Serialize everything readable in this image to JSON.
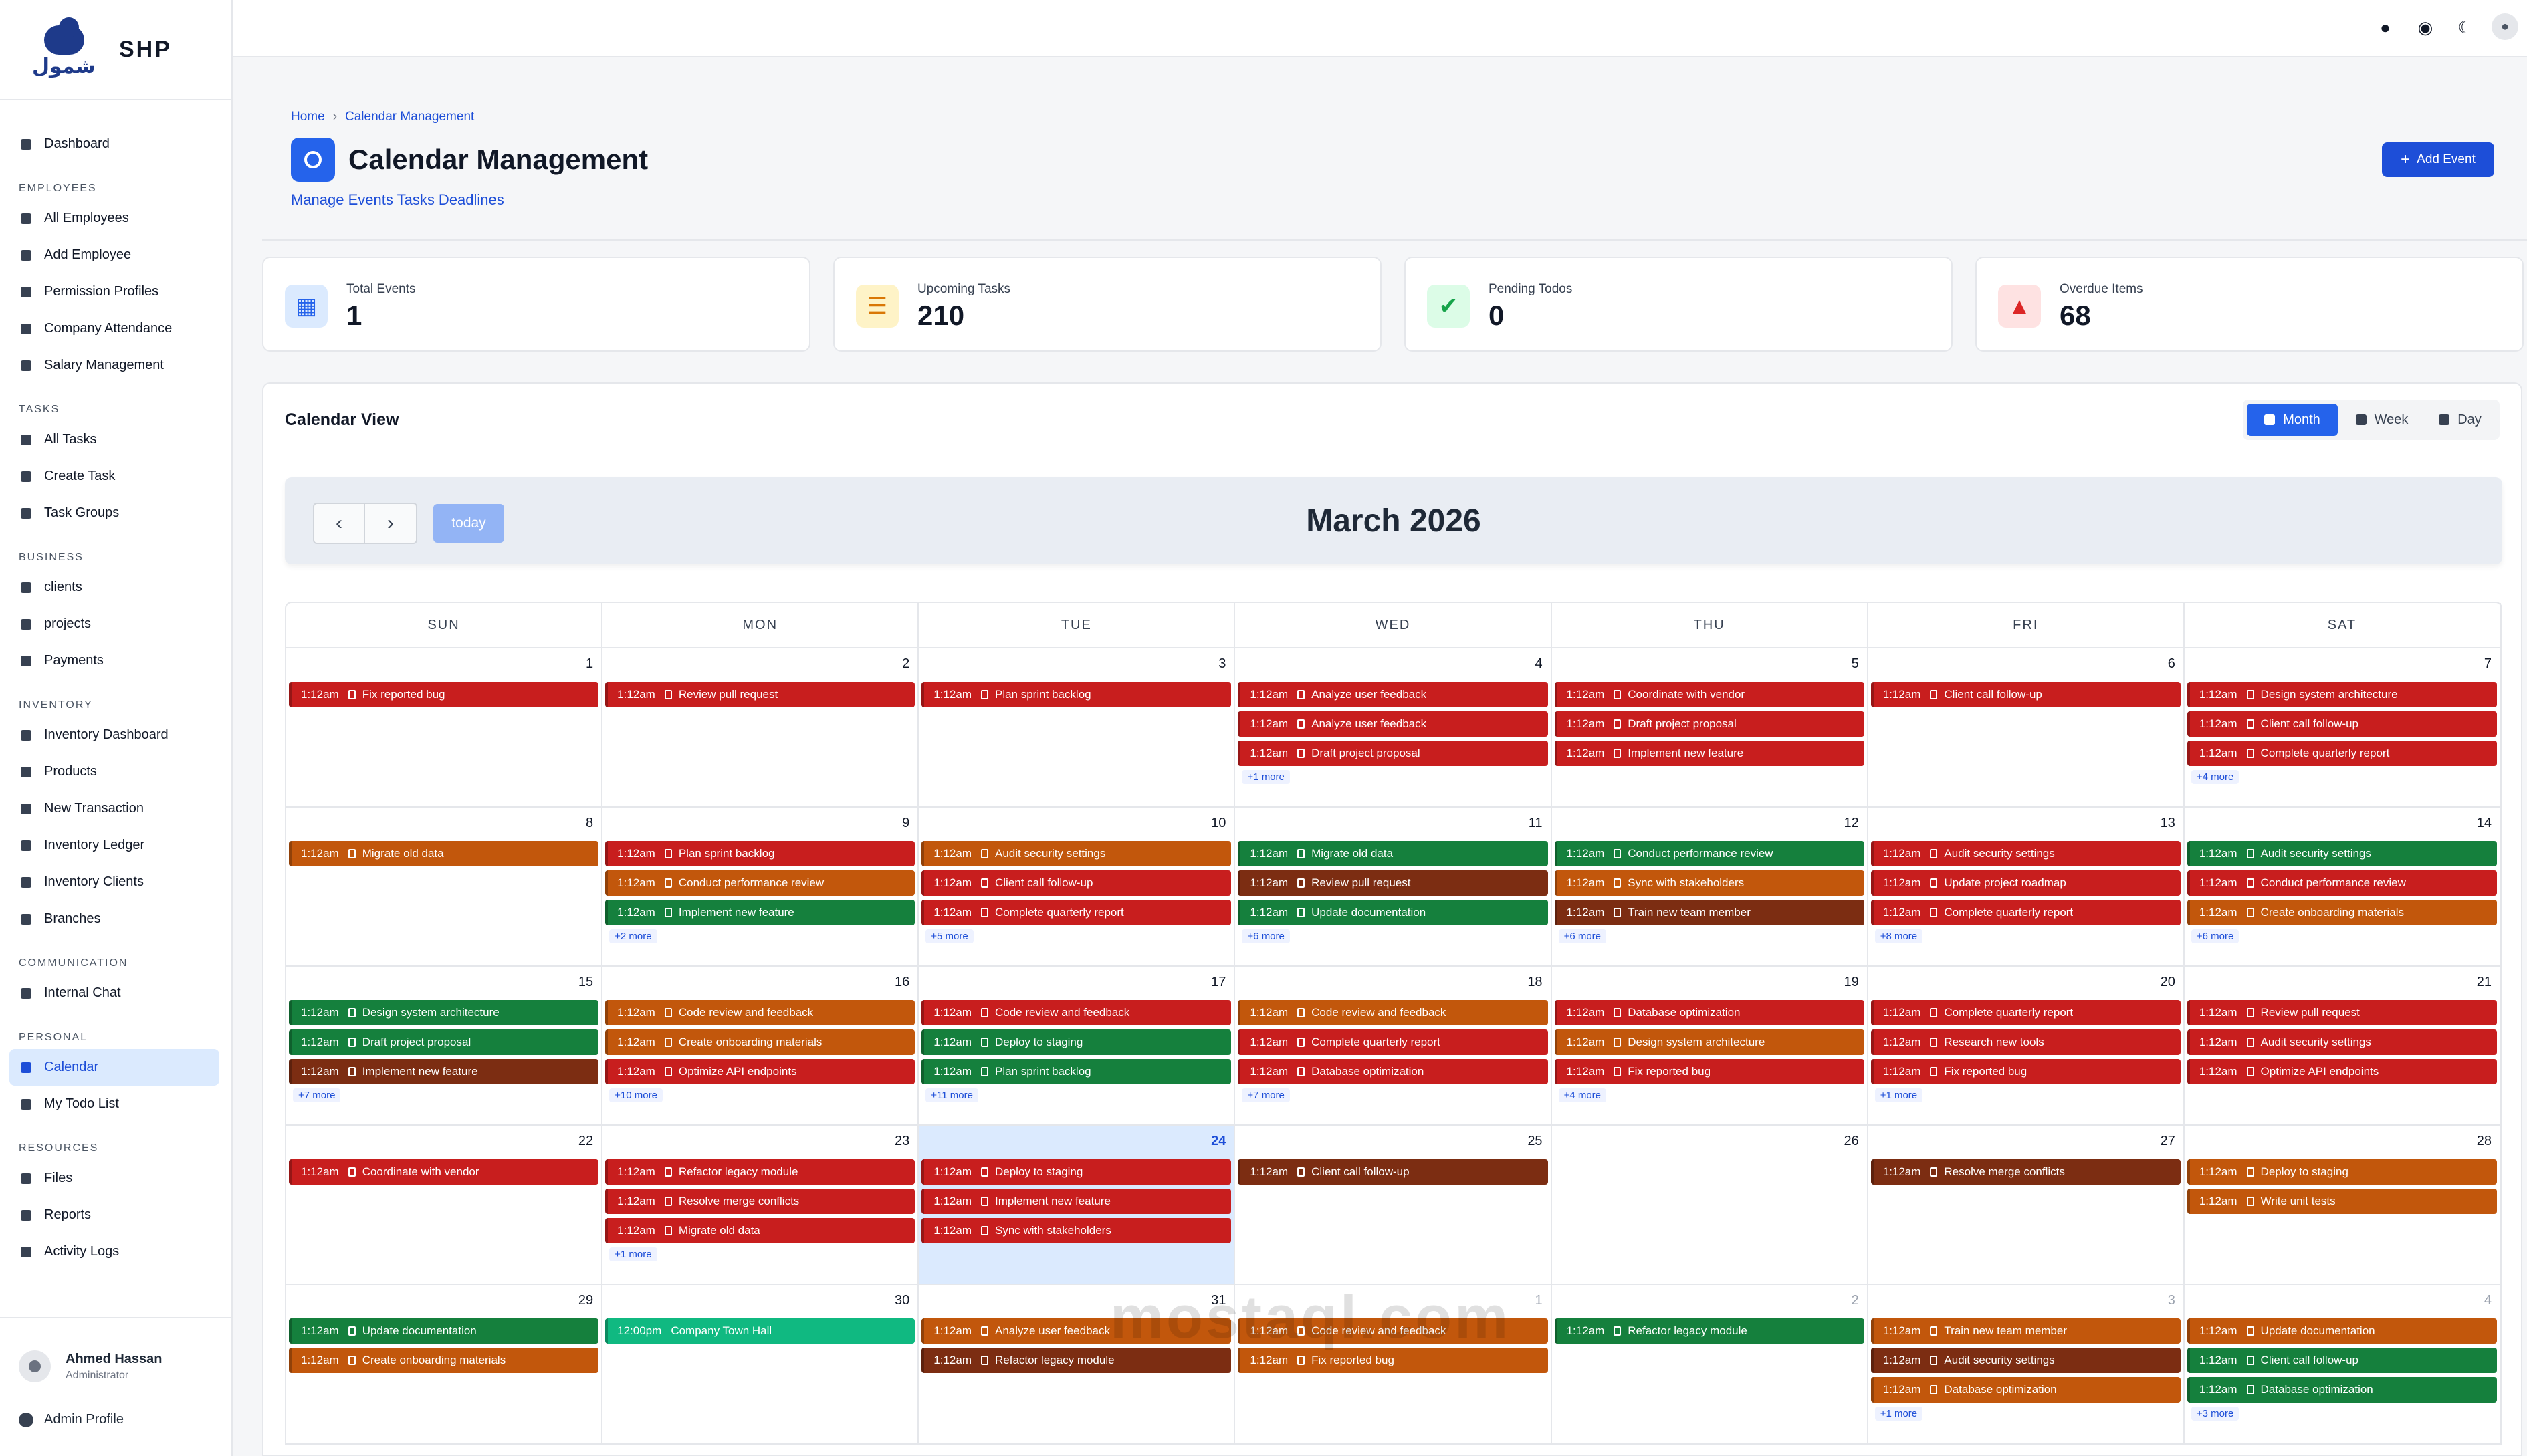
{
  "brand": {
    "name": "SHP",
    "logo_text": "شمول"
  },
  "nav": [
    {
      "section": "",
      "items": [
        {
          "label": "Dashboard",
          "icon": "dashboard-icon"
        }
      ]
    },
    {
      "section": "EMPLOYEES",
      "items": [
        {
          "label": "All Employees",
          "icon": "users-icon"
        },
        {
          "label": "Add Employee",
          "icon": "user-plus-icon"
        },
        {
          "label": "Permission Profiles",
          "icon": "shield-icon"
        },
        {
          "label": "Company Attendance",
          "icon": "clock-icon"
        },
        {
          "label": "Salary Management",
          "icon": "money-icon"
        }
      ]
    },
    {
      "section": "TASKS",
      "items": [
        {
          "label": "All Tasks",
          "icon": "list-icon"
        },
        {
          "label": "Create Task",
          "icon": "plus-icon"
        },
        {
          "label": "Task Groups",
          "icon": "layers-icon"
        }
      ]
    },
    {
      "section": "BUSINESS",
      "items": [
        {
          "label": "clients",
          "icon": "building-icon"
        },
        {
          "label": "projects",
          "icon": "project-icon"
        },
        {
          "label": "Payments",
          "icon": "dollar-icon"
        }
      ]
    },
    {
      "section": "INVENTORY",
      "items": [
        {
          "label": "Inventory Dashboard",
          "icon": "gauge-icon"
        },
        {
          "label": "Products",
          "icon": "boxes-icon"
        },
        {
          "label": "New Transaction",
          "icon": "exchange-icon"
        },
        {
          "label": "Inventory Ledger",
          "icon": "ledger-icon"
        },
        {
          "label": "Inventory Clients",
          "icon": "users-icon"
        },
        {
          "label": "Branches",
          "icon": "branch-icon"
        }
      ]
    },
    {
      "section": "COMMUNICATION",
      "items": [
        {
          "label": "Internal Chat",
          "icon": "chat-icon"
        }
      ]
    },
    {
      "section": "PERSONAL",
      "items": [
        {
          "label": "Calendar",
          "icon": "calendar-icon",
          "active": true
        },
        {
          "label": "My Todo List",
          "icon": "todo-icon"
        }
      ]
    },
    {
      "section": "RESOURCES",
      "items": [
        {
          "label": "Files",
          "icon": "folder-icon"
        },
        {
          "label": "Reports",
          "icon": "chart-icon"
        },
        {
          "label": "Activity Logs",
          "icon": "history-icon"
        }
      ]
    }
  ],
  "user": {
    "name": "Ahmed Hassan",
    "role": "Administrator",
    "profile_label": "Admin Profile"
  },
  "topbar": {
    "icons": [
      "bell-icon",
      "globe-icon",
      "moon-icon",
      "avatar-icon"
    ]
  },
  "page": {
    "breadcrumb_home": "Home",
    "breadcrumb_current": "Calendar Management",
    "title": "Calendar Management",
    "subtitle": "Manage Events Tasks Deadlines",
    "add_button": "Add Event"
  },
  "stats": [
    {
      "label": "Total Events",
      "value": "1",
      "icon": "calendar-icon",
      "fg": "#2563eb",
      "bg": "#dbeafe"
    },
    {
      "label": "Upcoming Tasks",
      "value": "210",
      "icon": "tasks-icon",
      "fg": "#d97706",
      "bg": "#fef3c7"
    },
    {
      "label": "Pending Todos",
      "value": "0",
      "icon": "check-icon",
      "fg": "#16a34a",
      "bg": "#dcfce7"
    },
    {
      "label": "Overdue Items",
      "value": "68",
      "icon": "warning-icon",
      "fg": "#dc2626",
      "bg": "#fee2e2"
    }
  ],
  "calendar": {
    "title": "Calendar View",
    "views": [
      "Month",
      "Week",
      "Day"
    ],
    "active_view": "Month",
    "today_label": "today",
    "month_label": "March 2026",
    "weekdays": [
      "SUN",
      "MON",
      "TUE",
      "WED",
      "THU",
      "FRI",
      "SAT"
    ],
    "colors": {
      "red": "#c81e1e",
      "orange": "#c2570c",
      "green": "#15803d",
      "brown": "#7c2d12",
      "teal": "#10b981"
    },
    "weeks": [
      [
        {
          "day": "1",
          "events": [
            {
              "time": "1:12am",
              "title": "Fix reported bug",
              "color": "red"
            }
          ]
        },
        {
          "day": "2",
          "events": [
            {
              "time": "1:12am",
              "title": "Review pull request",
              "color": "red"
            }
          ]
        },
        {
          "day": "3",
          "events": [
            {
              "time": "1:12am",
              "title": "Plan sprint backlog",
              "color": "red"
            }
          ]
        },
        {
          "day": "4",
          "events": [
            {
              "time": "1:12am",
              "title": "Analyze user feedback",
              "color": "red"
            },
            {
              "time": "1:12am",
              "title": "Analyze user feedback",
              "color": "red"
            },
            {
              "time": "1:12am",
              "title": "Draft project proposal",
              "color": "red"
            }
          ],
          "more": "+1 more"
        },
        {
          "day": "5",
          "events": [
            {
              "time": "1:12am",
              "title": "Coordinate with vendor",
              "color": "red"
            },
            {
              "time": "1:12am",
              "title": "Draft project proposal",
              "color": "red"
            },
            {
              "time": "1:12am",
              "title": "Implement new feature",
              "color": "red"
            }
          ]
        },
        {
          "day": "6",
          "events": [
            {
              "time": "1:12am",
              "title": "Client call follow-up",
              "color": "red"
            }
          ]
        },
        {
          "day": "7",
          "events": [
            {
              "time": "1:12am",
              "title": "Design system architecture",
              "color": "red"
            },
            {
              "time": "1:12am",
              "title": "Client call follow-up",
              "color": "red"
            },
            {
              "time": "1:12am",
              "title": "Complete quarterly report",
              "color": "red"
            }
          ],
          "more": "+4 more"
        }
      ],
      [
        {
          "day": "8",
          "events": [
            {
              "time": "1:12am",
              "title": "Migrate old data",
              "color": "orange"
            }
          ]
        },
        {
          "day": "9",
          "events": [
            {
              "time": "1:12am",
              "title": "Plan sprint backlog",
              "color": "red"
            },
            {
              "time": "1:12am",
              "title": "Conduct performance review",
              "color": "orange"
            },
            {
              "time": "1:12am",
              "title": "Implement new feature",
              "color": "green"
            }
          ],
          "more": "+2 more"
        },
        {
          "day": "10",
          "events": [
            {
              "time": "1:12am",
              "title": "Audit security settings",
              "color": "orange"
            },
            {
              "time": "1:12am",
              "title": "Client call follow-up",
              "color": "red"
            },
            {
              "time": "1:12am",
              "title": "Complete quarterly report",
              "color": "red"
            }
          ],
          "more": "+5 more"
        },
        {
          "day": "11",
          "events": [
            {
              "time": "1:12am",
              "title": "Migrate old data",
              "color": "green"
            },
            {
              "time": "1:12am",
              "title": "Review pull request",
              "color": "brown"
            },
            {
              "time": "1:12am",
              "title": "Update documentation",
              "color": "green"
            }
          ],
          "more": "+6 more"
        },
        {
          "day": "12",
          "events": [
            {
              "time": "1:12am",
              "title": "Conduct performance review",
              "color": "green"
            },
            {
              "time": "1:12am",
              "title": "Sync with stakeholders",
              "color": "orange"
            },
            {
              "time": "1:12am",
              "title": "Train new team member",
              "color": "brown"
            }
          ],
          "more": "+6 more"
        },
        {
          "day": "13",
          "events": [
            {
              "time": "1:12am",
              "title": "Audit security settings",
              "color": "red"
            },
            {
              "time": "1:12am",
              "title": "Update project roadmap",
              "color": "red"
            },
            {
              "time": "1:12am",
              "title": "Complete quarterly report",
              "color": "red"
            }
          ],
          "more": "+8 more"
        },
        {
          "day": "14",
          "events": [
            {
              "time": "1:12am",
              "title": "Audit security settings",
              "color": "green"
            },
            {
              "time": "1:12am",
              "title": "Conduct performance review",
              "color": "red"
            },
            {
              "time": "1:12am",
              "title": "Create onboarding materials",
              "color": "orange"
            }
          ],
          "more": "+6 more"
        }
      ],
      [
        {
          "day": "15",
          "events": [
            {
              "time": "1:12am",
              "title": "Design system architecture",
              "color": "green"
            },
            {
              "time": "1:12am",
              "title": "Draft project proposal",
              "color": "green"
            },
            {
              "time": "1:12am",
              "title": "Implement new feature",
              "color": "brown"
            }
          ],
          "more": "+7 more"
        },
        {
          "day": "16",
          "events": [
            {
              "time": "1:12am",
              "title": "Code review and feedback",
              "color": "orange"
            },
            {
              "time": "1:12am",
              "title": "Create onboarding materials",
              "color": "orange"
            },
            {
              "time": "1:12am",
              "title": "Optimize API endpoints",
              "color": "red"
            }
          ],
          "more": "+10 more"
        },
        {
          "day": "17",
          "events": [
            {
              "time": "1:12am",
              "title": "Code review and feedback",
              "color": "red"
            },
            {
              "time": "1:12am",
              "title": "Deploy to staging",
              "color": "green"
            },
            {
              "time": "1:12am",
              "title": "Plan sprint backlog",
              "color": "green"
            }
          ],
          "more": "+11 more"
        },
        {
          "day": "18",
          "events": [
            {
              "time": "1:12am",
              "title": "Code review and feedback",
              "color": "orange"
            },
            {
              "time": "1:12am",
              "title": "Complete quarterly report",
              "color": "red"
            },
            {
              "time": "1:12am",
              "title": "Database optimization",
              "color": "red"
            }
          ],
          "more": "+7 more"
        },
        {
          "day": "19",
          "events": [
            {
              "time": "1:12am",
              "title": "Database optimization",
              "color": "red"
            },
            {
              "time": "1:12am",
              "title": "Design system architecture",
              "color": "orange"
            },
            {
              "time": "1:12am",
              "title": "Fix reported bug",
              "color": "red"
            }
          ],
          "more": "+4 more"
        },
        {
          "day": "20",
          "events": [
            {
              "time": "1:12am",
              "title": "Complete quarterly report",
              "color": "red"
            },
            {
              "time": "1:12am",
              "title": "Research new tools",
              "color": "red"
            },
            {
              "time": "1:12am",
              "title": "Fix reported bug",
              "color": "red"
            }
          ],
          "more": "+1 more"
        },
        {
          "day": "21",
          "events": [
            {
              "time": "1:12am",
              "title": "Review pull request",
              "color": "red"
            },
            {
              "time": "1:12am",
              "title": "Audit security settings",
              "color": "red"
            },
            {
              "time": "1:12am",
              "title": "Optimize API endpoints",
              "color": "red"
            }
          ]
        }
      ],
      [
        {
          "day": "22",
          "events": [
            {
              "time": "1:12am",
              "title": "Coordinate with vendor",
              "color": "red"
            }
          ]
        },
        {
          "day": "23",
          "events": [
            {
              "time": "1:12am",
              "title": "Refactor legacy module",
              "color": "red"
            },
            {
              "time": "1:12am",
              "title": "Resolve merge conflicts",
              "color": "red"
            },
            {
              "time": "1:12am",
              "title": "Migrate old data",
              "color": "red"
            }
          ],
          "more": "+1 more"
        },
        {
          "day": "24",
          "today": true,
          "events": [
            {
              "time": "1:12am",
              "title": "Deploy to staging",
              "color": "red"
            },
            {
              "time": "1:12am",
              "title": "Implement new feature",
              "color": "red"
            },
            {
              "time": "1:12am",
              "title": "Sync with stakeholders",
              "color": "red"
            }
          ]
        },
        {
          "day": "25",
          "events": [
            {
              "time": "1:12am",
              "title": "Client call follow-up",
              "color": "brown"
            }
          ]
        },
        {
          "day": "26",
          "events": []
        },
        {
          "day": "27",
          "events": [
            {
              "time": "1:12am",
              "title": "Resolve merge conflicts",
              "color": "brown"
            }
          ]
        },
        {
          "day": "28",
          "events": [
            {
              "time": "1:12am",
              "title": "Deploy to staging",
              "color": "orange"
            },
            {
              "time": "1:12am",
              "title": "Write unit tests",
              "color": "orange"
            }
          ]
        }
      ],
      [
        {
          "day": "29",
          "events": [
            {
              "time": "1:12am",
              "title": "Update documentation",
              "color": "green"
            },
            {
              "time": "1:12am",
              "title": "Create onboarding materials",
              "color": "orange"
            }
          ]
        },
        {
          "day": "30",
          "events": [
            {
              "time": "12:00pm",
              "title": "Company Town Hall",
              "color": "teal",
              "noicon": true
            }
          ]
        },
        {
          "day": "31",
          "events": [
            {
              "time": "1:12am",
              "title": "Analyze user feedback",
              "color": "orange"
            },
            {
              "time": "1:12am",
              "title": "Refactor legacy module",
              "color": "brown"
            }
          ]
        },
        {
          "day": "1",
          "other": true,
          "events": [
            {
              "time": "1:12am",
              "title": "Code review and feedback",
              "color": "orange"
            },
            {
              "time": "1:12am",
              "title": "Fix reported bug",
              "color": "orange"
            }
          ]
        },
        {
          "day": "2",
          "other": true,
          "events": [
            {
              "time": "1:12am",
              "title": "Refactor legacy module",
              "color": "green"
            }
          ]
        },
        {
          "day": "3",
          "other": true,
          "events": [
            {
              "time": "1:12am",
              "title": "Train new team member",
              "color": "orange"
            },
            {
              "time": "1:12am",
              "title": "Audit security settings",
              "color": "brown"
            },
            {
              "time": "1:12am",
              "title": "Database optimization",
              "color": "orange"
            }
          ],
          "more": "+1 more"
        },
        {
          "day": "4",
          "other": true,
          "events": [
            {
              "time": "1:12am",
              "title": "Update documentation",
              "color": "orange"
            },
            {
              "time": "1:12am",
              "title": "Client call follow-up",
              "color": "green"
            },
            {
              "time": "1:12am",
              "title": "Database optimization",
              "color": "green"
            }
          ],
          "more": "+3 more"
        }
      ]
    ]
  },
  "watermark": "mostaql.com"
}
